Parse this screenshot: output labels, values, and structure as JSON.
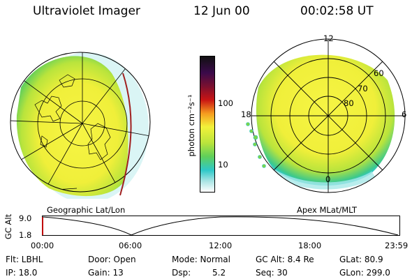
{
  "header": {
    "instrument": "Ultraviolet Imager",
    "date": "12 Jun 00",
    "time": "00:02:58 UT"
  },
  "colorbar": {
    "unit_label": "photon cm⁻²s⁻¹",
    "ticks": [
      "100",
      "10"
    ]
  },
  "panels": {
    "left_caption": "Geographic Lat/Lon",
    "right_caption": "Apex MLat/MLT",
    "mlt_labels": {
      "top": "12",
      "left": "18",
      "right": "6",
      "bottom": "0"
    },
    "mlat_labels": [
      "60",
      "70",
      "80"
    ]
  },
  "altitude_plot": {
    "ylabel": "GC Alt",
    "y_ticks": [
      "9.0",
      "1.8"
    ],
    "x_ticks": [
      "00:00",
      "06:00",
      "12:00",
      "18:00",
      "23:59"
    ]
  },
  "info": {
    "flt": "Flt: LBHL",
    "ip": "IP: 18.0",
    "door": "Door: Open",
    "gain": "Gain: 13",
    "mode": "Mode: Normal",
    "dsp_label": "Dsp:",
    "dsp_value": "5.2",
    "gcalt": "GC Alt: 8.4 Re",
    "seq": "Seq: 30",
    "glat": "GLat: 80.9",
    "glon": "GLon: 299.0"
  },
  "colors": {
    "aurora_yellow": "#f2f23a",
    "aurora_green": "#8cd83a",
    "aurora_cyan": "#2ec8c8",
    "scale_black": "#111111",
    "scale_purple": "#3a0a4a",
    "scale_red": "#c81414",
    "scale_orange": "#f59a1e"
  }
}
